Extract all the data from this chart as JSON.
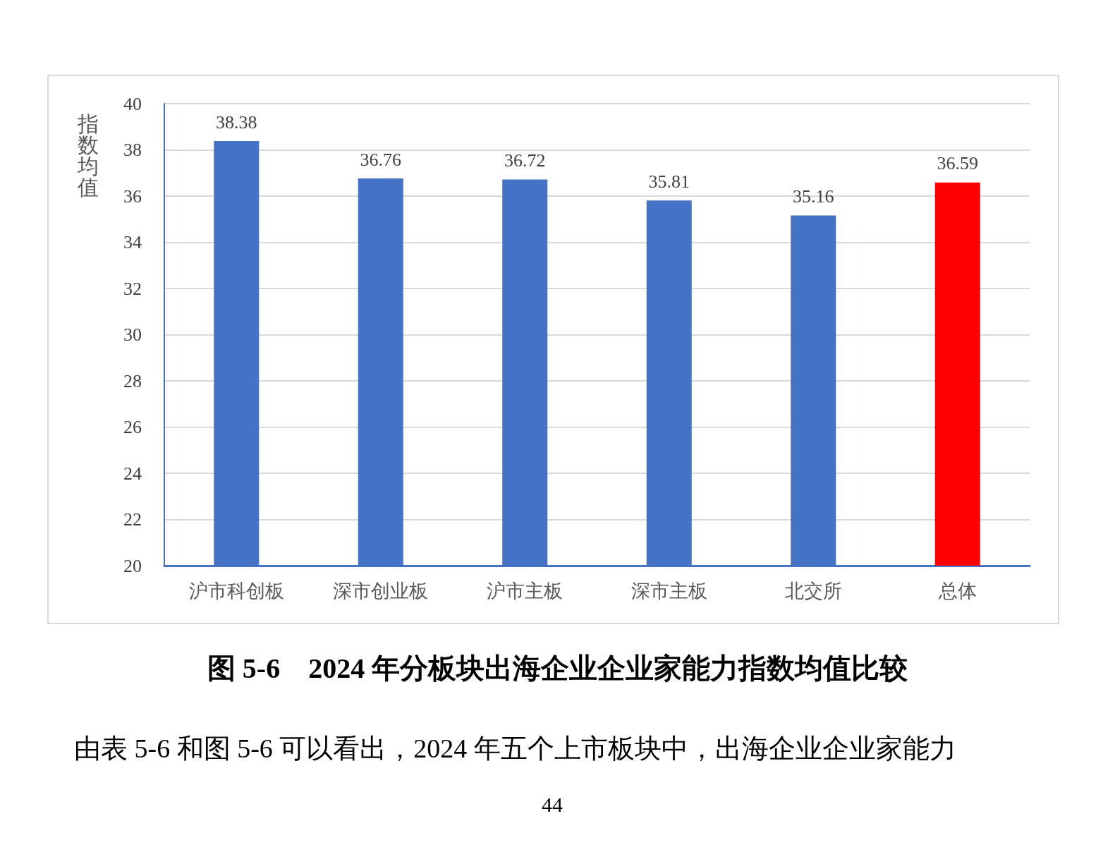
{
  "chart_data": {
    "type": "bar",
    "title": "图 5-6　2024 年分板块出海企业企业家能力指数均值比较",
    "ylabel": "指数均值",
    "categories": [
      "沪市科创板",
      "深市创业板",
      "沪市主板",
      "深市主板",
      "北交所",
      "总体"
    ],
    "values": [
      38.38,
      36.76,
      36.72,
      35.81,
      35.16,
      36.59
    ],
    "colors": [
      "#4472c4",
      "#4472c4",
      "#4472c4",
      "#4472c4",
      "#4472c4",
      "#ff0000"
    ],
    "ylim": [
      20,
      40
    ],
    "yticks": [
      20,
      22,
      24,
      26,
      28,
      30,
      32,
      34,
      36,
      38,
      40
    ],
    "grid": "y",
    "data_labels": true,
    "annotations": [
      "由表 5-6 和图 5-6 可以看出，2024 年五个上市板块中，出海企业企业家能力",
      "44"
    ]
  }
}
